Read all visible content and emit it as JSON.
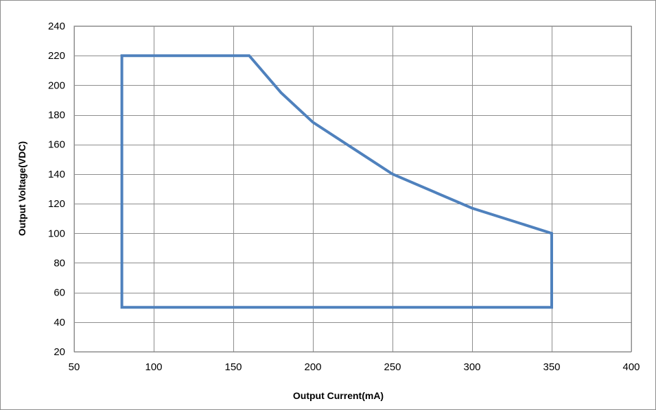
{
  "chart_data": {
    "type": "line",
    "title": "",
    "xlabel": "Output Current(mA)",
    "ylabel": "Output Voltage(VDC)",
    "xlim": [
      50,
      400
    ],
    "ylim": [
      20,
      240
    ],
    "x_ticks": [
      50,
      100,
      150,
      200,
      250,
      300,
      350,
      400
    ],
    "y_ticks": [
      20,
      40,
      60,
      80,
      100,
      120,
      140,
      160,
      180,
      200,
      220,
      240
    ],
    "grid": true,
    "legend": "none",
    "series": [
      {
        "color": "#4f81bd",
        "points": [
          {
            "x": 80,
            "y": 50
          },
          {
            "x": 80,
            "y": 220
          },
          {
            "x": 160,
            "y": 220
          },
          {
            "x": 180,
            "y": 195
          },
          {
            "x": 200,
            "y": 175
          },
          {
            "x": 250,
            "y": 140
          },
          {
            "x": 300,
            "y": 117
          },
          {
            "x": 350,
            "y": 100
          },
          {
            "x": 350,
            "y": 50
          },
          {
            "x": 80,
            "y": 50
          }
        ]
      }
    ]
  }
}
